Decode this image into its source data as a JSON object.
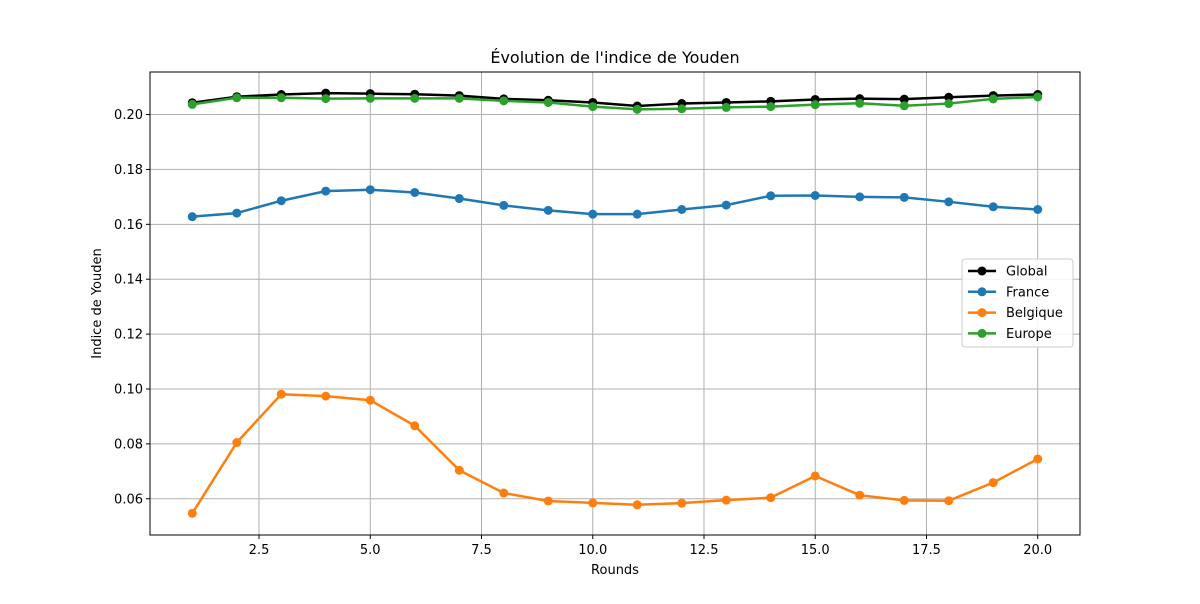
{
  "chart_data": {
    "type": "line",
    "title": "Évolution de l'indice de Youden",
    "xlabel": "Rounds",
    "ylabel": "Indice de Youden",
    "xlim": [
      0.05,
      20.95
    ],
    "ylim": [
      0.0468,
      0.2155
    ],
    "x_ticks": [
      2.5,
      5.0,
      7.5,
      10.0,
      12.5,
      15.0,
      17.5,
      20.0
    ],
    "x_tick_labels": [
      "2.5",
      "5.0",
      "7.5",
      "10.0",
      "12.5",
      "15.0",
      "17.5",
      "20.0"
    ],
    "y_ticks": [
      0.06,
      0.08,
      0.1,
      0.12,
      0.14,
      0.16,
      0.18,
      0.2
    ],
    "y_tick_labels": [
      "0.06",
      "0.08",
      "0.10",
      "0.12",
      "0.14",
      "0.16",
      "0.18",
      "0.20"
    ],
    "grid": true,
    "legend_position": "center-right",
    "x": [
      1,
      2,
      3,
      4,
      5,
      6,
      7,
      8,
      9,
      10,
      11,
      12,
      13,
      14,
      15,
      16,
      17,
      18,
      19,
      20
    ],
    "series": [
      {
        "name": "Global",
        "color": "#000000",
        "values": [
          0.2043,
          0.2065,
          0.2073,
          0.2078,
          0.2076,
          0.2074,
          0.2069,
          0.2057,
          0.2052,
          0.2044,
          0.2031,
          0.204,
          0.2044,
          0.2048,
          0.2055,
          0.2058,
          0.2056,
          0.2063,
          0.2069,
          0.2073
        ]
      },
      {
        "name": "France",
        "color": "#1f77b4",
        "values": [
          0.1628,
          0.1641,
          0.1686,
          0.1721,
          0.1726,
          0.1716,
          0.1694,
          0.1669,
          0.1651,
          0.1637,
          0.1637,
          0.1654,
          0.167,
          0.1704,
          0.1705,
          0.17,
          0.1698,
          0.1682,
          0.1664,
          0.1654
        ]
      },
      {
        "name": "Belgique",
        "color": "#ff7f0e",
        "values": [
          0.0547,
          0.0805,
          0.0981,
          0.0974,
          0.0959,
          0.0866,
          0.0704,
          0.0621,
          0.0592,
          0.0585,
          0.0578,
          0.0584,
          0.0595,
          0.0604,
          0.0683,
          0.0613,
          0.0594,
          0.0593,
          0.0659,
          0.0745
        ]
      },
      {
        "name": "Europe",
        "color": "#2ca02c",
        "values": [
          0.2037,
          0.2061,
          0.2061,
          0.2058,
          0.2059,
          0.2059,
          0.2059,
          0.205,
          0.2044,
          0.2029,
          0.2019,
          0.2021,
          0.2026,
          0.2029,
          0.2036,
          0.2041,
          0.2032,
          0.204,
          0.2057,
          0.2064
        ]
      }
    ]
  }
}
